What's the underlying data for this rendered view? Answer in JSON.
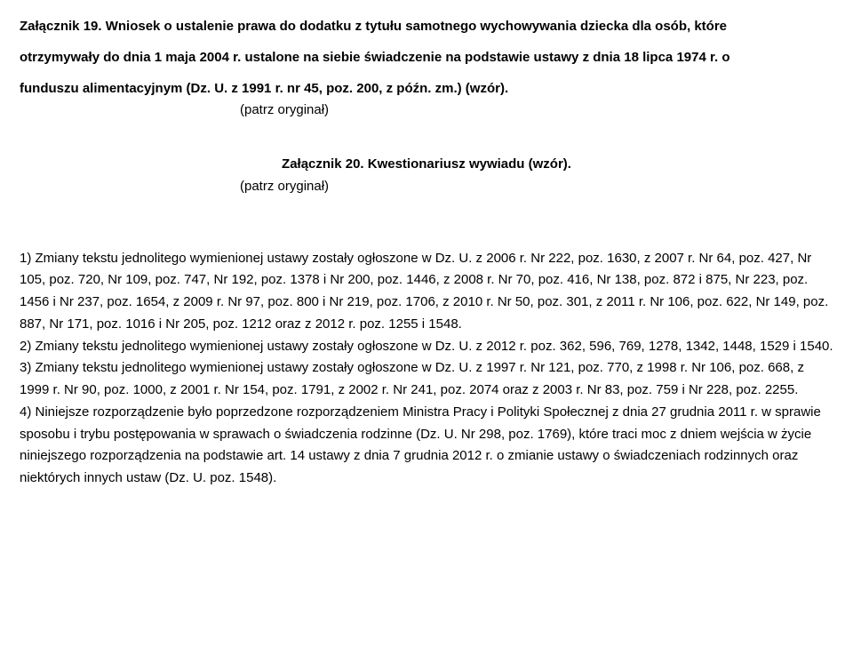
{
  "attachment19": {
    "line1": "Załącznik 19. Wniosek o ustalenie prawa do dodatku z tytułu samotnego wychowywania dziecka dla osób, które",
    "line2": "otrzymywały do dnia 1 maja 2004 r. ustalone na siebie świadczenie na podstawie ustawy z dnia 18 lipca 1974 r. o",
    "line3": "funduszu alimentacyjnym (Dz. U. z 1991 r. nr 45, poz. 200, z późn. zm.) (wzór).",
    "note": "(patrz oryginał)"
  },
  "attachment20": {
    "title": "Załącznik 20. Kwestionariusz wywiadu (wzór).",
    "note": "(patrz oryginał)"
  },
  "footnotes": {
    "f1": "1)  Zmiany tekstu jednolitego wymienionej ustawy zostały ogłoszone w Dz. U. z 2006 r. Nr 222, poz. 1630, z 2007 r. Nr 64, poz. 427, Nr 105, poz. 720, Nr 109, poz. 747, Nr 192, poz. 1378 i Nr 200, poz. 1446, z 2008 r. Nr 70, poz. 416, Nr 138, poz. 872 i 875, Nr 223, poz. 1456 i Nr 237, poz. 1654, z 2009 r. Nr 97, poz. 800 i Nr 219, poz. 1706, z 2010 r. Nr 50, poz. 301, z 2011 r. Nr 106, poz. 622, Nr 149, poz. 887, Nr 171, poz. 1016 i Nr 205, poz. 1212 oraz z 2012 r. poz. 1255 i 1548.",
    "f2": "2)  Zmiany tekstu jednolitego wymienionej ustawy zostały ogłoszone w Dz. U. z 2012 r. poz. 362, 596, 769, 1278, 1342, 1448, 1529 i 1540.",
    "f3": "3)  Zmiany tekstu jednolitego wymienionej ustawy zostały ogłoszone w Dz. U. z 1997 r. Nr 121, poz. 770, z 1998 r. Nr 106, poz. 668, z 1999 r. Nr 90, poz. 1000, z 2001 r. Nr 154, poz. 1791, z 2002 r. Nr 241, poz. 2074 oraz z 2003 r. Nr 83, poz. 759 i Nr 228, poz. 2255.",
    "f4": "4)  Niniejsze rozporządzenie było poprzedzone rozporządzeniem Ministra Pracy i Polityki Społecznej z dnia 27 grudnia 2011 r. w sprawie sposobu i trybu postępowania w sprawach o świadczenia rodzinne (Dz. U. Nr 298, poz. 1769), które traci moc z dniem wejścia w życie niniejszego rozporządzenia na podstawie art. 14 ustawy z dnia 7 grudnia 2012 r. o zmianie ustawy o świadczeniach rodzinnych oraz niektórych innych ustaw (Dz. U. poz. 1548)."
  }
}
